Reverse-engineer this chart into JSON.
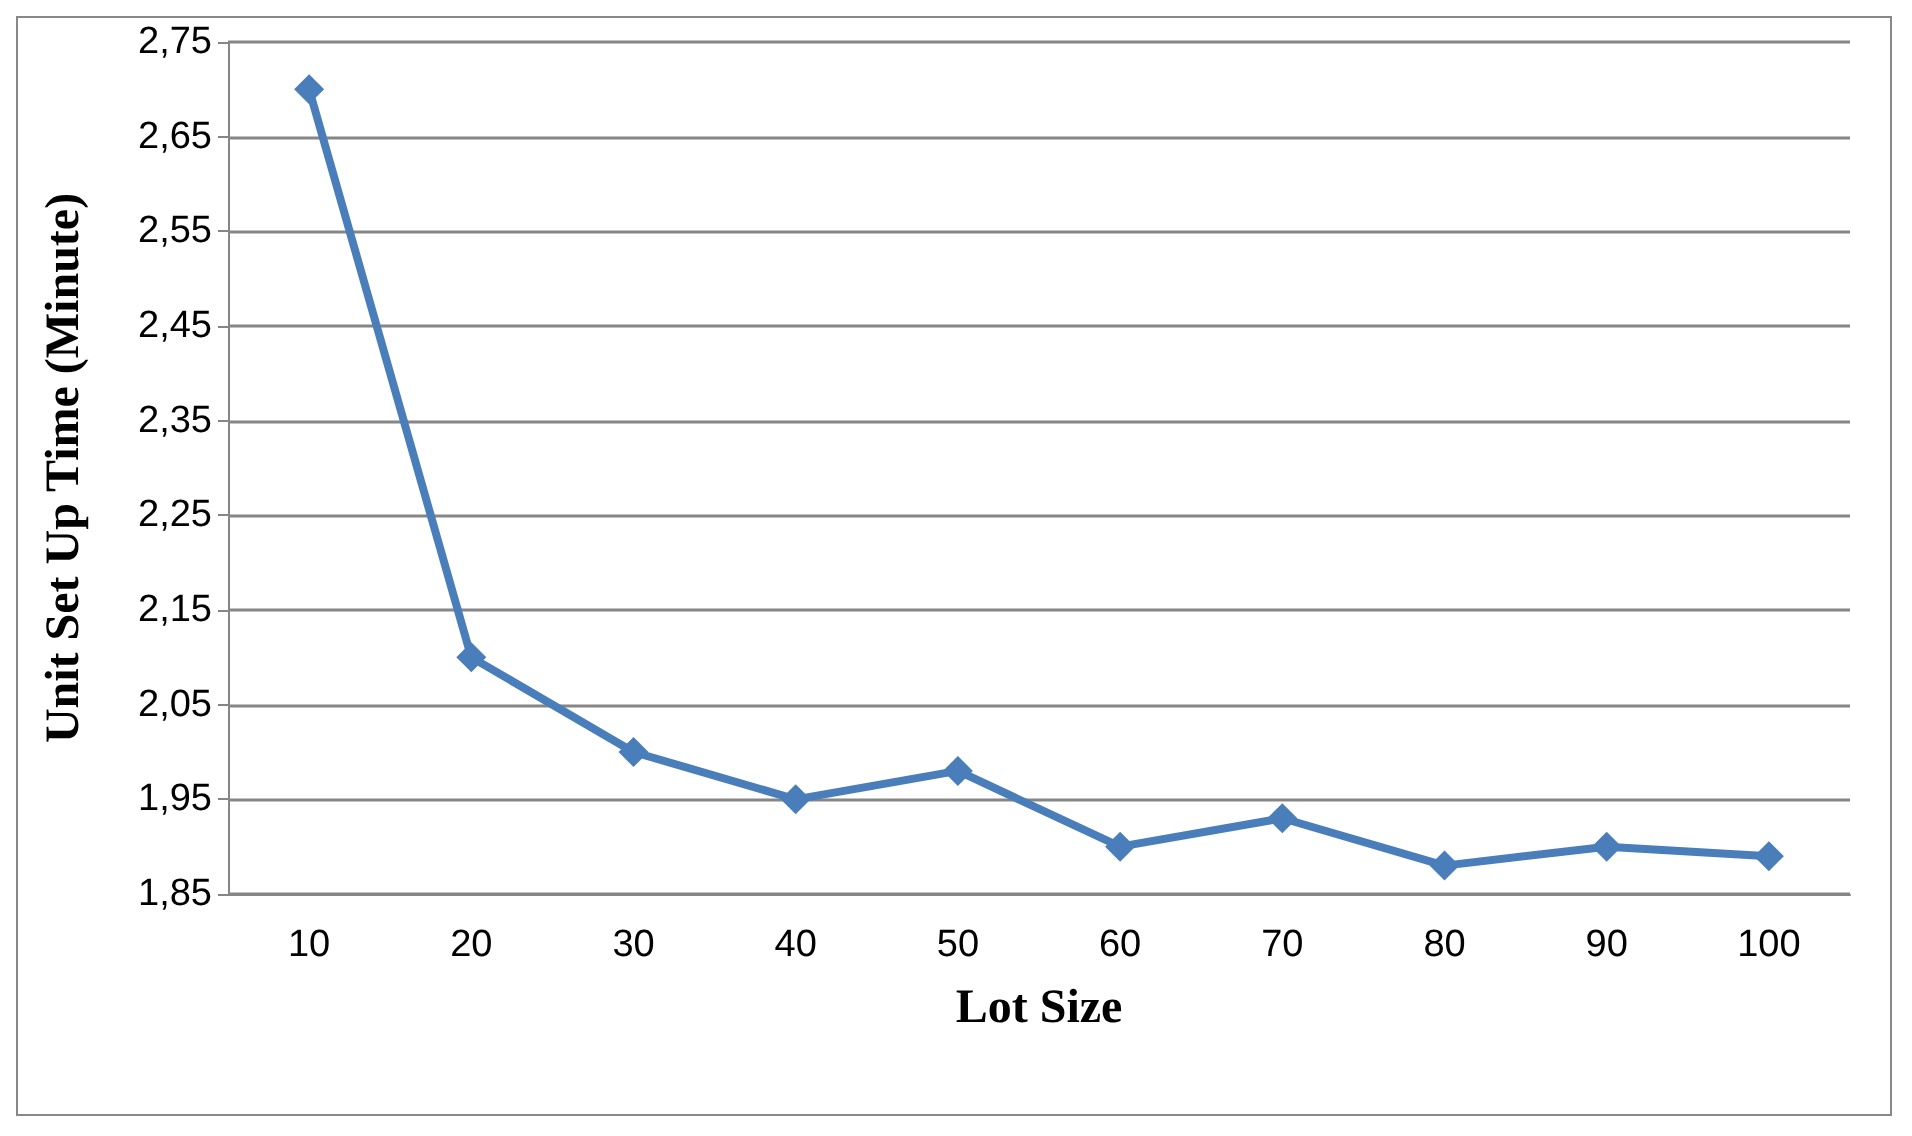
{
  "chart_data": {
    "type": "line",
    "xlabel": "Lot Size",
    "ylabel": "Unit Set Up Time (Minute)",
    "categories": [
      "10",
      "20",
      "30",
      "40",
      "50",
      "60",
      "70",
      "80",
      "90",
      "100"
    ],
    "series": [
      {
        "color": "#4a7ebb",
        "values": [
          2.7,
          2.1,
          2.0,
          1.95,
          1.98,
          1.9,
          1.93,
          1.88,
          1.9,
          1.89
        ]
      }
    ],
    "ylim": [
      1.85,
      2.75
    ],
    "yticks": [
      {
        "value": 1.85,
        "label": "1,85"
      },
      {
        "value": 1.95,
        "label": "1,95"
      },
      {
        "value": 2.05,
        "label": "2,05"
      },
      {
        "value": 2.15,
        "label": "2,15"
      },
      {
        "value": 2.25,
        "label": "2,25"
      },
      {
        "value": 2.35,
        "label": "2,35"
      },
      {
        "value": 2.45,
        "label": "2,45"
      },
      {
        "value": 2.55,
        "label": "2,55"
      },
      {
        "value": 2.65,
        "label": "2,65"
      },
      {
        "value": 2.75,
        "label": "2,75"
      }
    ],
    "grid": "y",
    "marker": "diamond",
    "line_style": "solid"
  }
}
